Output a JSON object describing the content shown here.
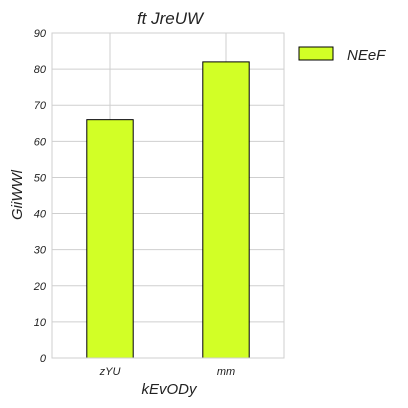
{
  "chart_data": {
    "type": "bar",
    "title": "ft JreUW",
    "xlabel": "kEvODy",
    "ylabel": "GiiWWl",
    "categories": [
      "zYU",
      "mm"
    ],
    "series": [
      {
        "name": "NEeF",
        "values": [
          66,
          82
        ],
        "color": "#d2ff26"
      }
    ],
    "ylim": [
      0,
      90
    ],
    "yticks": [
      "0",
      "10",
      "20",
      "30",
      "40",
      "50",
      "60",
      "70",
      "80",
      "90"
    ],
    "grid": true,
    "legend_position": "top-right, outside"
  }
}
